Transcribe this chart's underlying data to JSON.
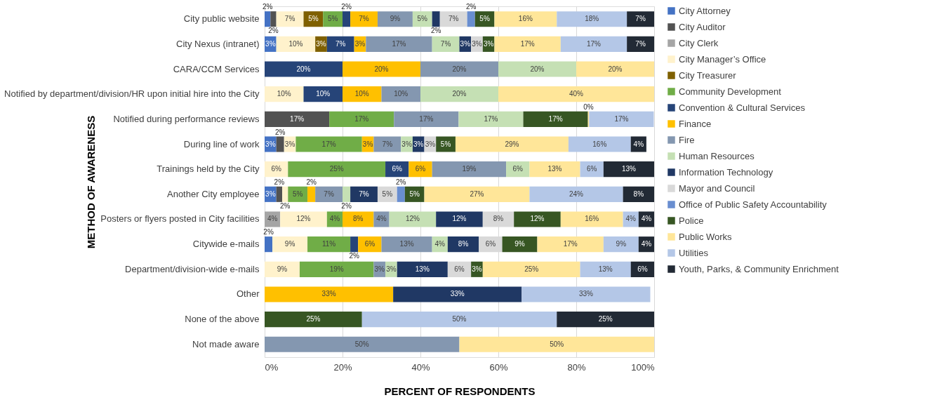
{
  "chart_data": {
    "type": "bar",
    "orientation": "horizontal",
    "stacked": true,
    "legend": "right",
    "grid": "x",
    "xlabel": "PERCENT OF RESPONDENTS",
    "ylabel": "METHOD OF AWARENESS",
    "categories": [
      "City public website",
      "City Nexus (intranet)",
      "CARA/CCM Services",
      "Notified by department/division/HR upon initial hire into the City",
      "Notified during performance reviews",
      "During line of work",
      "Trainings held by the City",
      "Another City employee",
      "Posters or flyers posted in City facilities",
      "Citywide e-mails",
      "Department/division-wide e-mails",
      "Other",
      "None of the above",
      "Not made aware"
    ],
    "xlim": [
      0,
      100
    ],
    "xticks": [
      {
        "value": 0,
        "label": "0%"
      },
      {
        "value": 20,
        "label": "20%"
      },
      {
        "value": 40,
        "label": "40%"
      },
      {
        "value": 60,
        "label": "60%"
      },
      {
        "value": 80,
        "label": "80%"
      },
      {
        "value": 100,
        "label": "100%"
      }
    ],
    "series": [
      {
        "name": "City Attorney",
        "color": "#4472c4",
        "values": [
          1.5,
          3,
          null,
          null,
          null,
          3,
          null,
          3,
          null,
          2,
          null,
          null,
          null,
          null
        ],
        "value_labels": [
          "2%",
          "3%",
          null,
          null,
          null,
          "3%",
          null,
          "3%",
          null,
          "2%",
          null,
          null,
          null,
          null
        ]
      },
      {
        "name": "City Auditor",
        "color": "#525252",
        "values": [
          1.5,
          null,
          null,
          null,
          16.6,
          2,
          null,
          1.5,
          null,
          null,
          null,
          null,
          null,
          null
        ],
        "value_labels": [
          "2%",
          null,
          null,
          null,
          "17%",
          "2%",
          null,
          "2%",
          null,
          null,
          null,
          null,
          null,
          null
        ]
      },
      {
        "name": "City Clerk",
        "color": "#a5a5a5",
        "values": [
          null,
          null,
          null,
          null,
          null,
          null,
          null,
          null,
          4,
          null,
          null,
          null,
          null,
          null
        ],
        "value_labels": [
          null,
          null,
          null,
          null,
          null,
          null,
          null,
          null,
          "4%",
          null,
          null,
          null,
          null,
          null
        ]
      },
      {
        "name": "City Manager’s Office",
        "color": "#fff2cc",
        "values": [
          7,
          10,
          null,
          10,
          null,
          3,
          6,
          1.5,
          12,
          9,
          9,
          null,
          null,
          null
        ],
        "value_labels": [
          "7%",
          "10%",
          null,
          "10%",
          null,
          "3%",
          "6%",
          "2%",
          "12%",
          "9%",
          "9%",
          null,
          null,
          null
        ]
      },
      {
        "name": "City Treasurer",
        "color": "#7f6000",
        "values": [
          5,
          3,
          null,
          null,
          null,
          null,
          null,
          null,
          null,
          null,
          null,
          null,
          null,
          null
        ],
        "value_labels": [
          "5%",
          "3%",
          null,
          null,
          null,
          null,
          null,
          null,
          null,
          null,
          null,
          null,
          null,
          null
        ]
      },
      {
        "name": "Community Development",
        "color": "#70ad47",
        "values": [
          5,
          null,
          null,
          null,
          16.6,
          17,
          25,
          5,
          4,
          11,
          19,
          null,
          null,
          null
        ],
        "value_labels": [
          "5%",
          null,
          null,
          null,
          "17%",
          "17%",
          "25%",
          "5%",
          "4%",
          "11%",
          "19%",
          null,
          null,
          null
        ]
      },
      {
        "name": "Convention & Cultural Services",
        "color": "#264478",
        "values": [
          2,
          7,
          20,
          10,
          null,
          null,
          6,
          null,
          null,
          2,
          null,
          null,
          null,
          null
        ],
        "value_labels": [
          "2%",
          "7%",
          "20%",
          "10%",
          null,
          null,
          "6%",
          null,
          null,
          "2%",
          null,
          null,
          null,
          null
        ]
      },
      {
        "name": "Finance",
        "color": "#ffc000",
        "values": [
          7,
          3,
          20,
          10,
          null,
          3,
          6,
          2,
          8,
          6,
          null,
          33,
          null,
          null
        ],
        "value_labels": [
          "7%",
          "3%",
          "20%",
          "10%",
          null,
          "3%",
          "6%",
          "2%",
          "8%",
          "6%",
          null,
          "33%",
          null,
          null
        ]
      },
      {
        "name": "Fire",
        "color": "#8497b0",
        "values": [
          9,
          17,
          20,
          10,
          16.6,
          7,
          19,
          7,
          4,
          13,
          3,
          null,
          null,
          50
        ],
        "value_labels": [
          "9%",
          "17%",
          "20%",
          "10%",
          "17%",
          "7%",
          "19%",
          "7%",
          "4%",
          "13%",
          "3%",
          null,
          null,
          "50%"
        ]
      },
      {
        "name": "Human Resources",
        "color": "#c5e0b4",
        "values": [
          5,
          7,
          20,
          20,
          16.6,
          3,
          6,
          2,
          12,
          4,
          3,
          null,
          null,
          null
        ],
        "value_labels": [
          "5%",
          "7%",
          "20%",
          "20%",
          "17%",
          "3%",
          "6%",
          "2%",
          "12%",
          "4%",
          "3%",
          null,
          null,
          null
        ]
      },
      {
        "name": "Information Technology",
        "color": "#203864",
        "values": [
          2,
          3,
          null,
          null,
          null,
          3,
          null,
          7,
          12,
          8,
          13,
          33,
          null,
          null
        ],
        "value_labels": [
          "2%",
          "3%",
          null,
          null,
          null,
          "3%",
          null,
          "7%",
          "12%",
          "8%",
          "13%",
          "33%",
          null,
          null
        ]
      },
      {
        "name": "Mayor and Council",
        "color": "#d9d9d9",
        "values": [
          7,
          3,
          null,
          null,
          null,
          3,
          null,
          5,
          8,
          6,
          6,
          null,
          null,
          null
        ],
        "value_labels": [
          "7%",
          "3%",
          null,
          null,
          null,
          "3%",
          null,
          "5%",
          "8%",
          "6%",
          "6%",
          null,
          null,
          null
        ]
      },
      {
        "name": "Office of Public Safety Accountability",
        "color": "#698ed0",
        "values": [
          2,
          null,
          null,
          null,
          null,
          null,
          null,
          2,
          null,
          null,
          null,
          null,
          null,
          null
        ],
        "value_labels": [
          "2%",
          null,
          null,
          null,
          null,
          null,
          null,
          "2%",
          null,
          null,
          null,
          null,
          null,
          null
        ]
      },
      {
        "name": "Police",
        "color": "#375623",
        "values": [
          5,
          3,
          null,
          null,
          16.6,
          5,
          null,
          5,
          12,
          9,
          3,
          null,
          25,
          null
        ],
        "value_labels": [
          "5%",
          "3%",
          null,
          null,
          "17%",
          "5%",
          null,
          "5%",
          "12%",
          "9%",
          "3%",
          null,
          "25%",
          null
        ]
      },
      {
        "name": "Public Works",
        "color": "#ffe699",
        "values": [
          16,
          17,
          20,
          40,
          0.3,
          29,
          13,
          27,
          16,
          17,
          25,
          null,
          null,
          50
        ],
        "value_labels": [
          "16%",
          "17%",
          "20%",
          "40%",
          "0%",
          "29%",
          "13%",
          "27%",
          "16%",
          "17%",
          "25%",
          null,
          null,
          "50%"
        ]
      },
      {
        "name": "Utilities",
        "color": "#b4c7e7",
        "values": [
          18,
          17,
          null,
          null,
          16.6,
          16,
          6,
          24,
          4,
          9,
          13,
          33,
          50,
          null
        ],
        "value_labels": [
          "18%",
          "17%",
          null,
          null,
          "17%",
          "16%",
          "6%",
          "24%",
          "4%",
          "9%",
          "13%",
          "33%",
          "50%",
          null
        ]
      },
      {
        "name": "Youth, Parks, & Community Enrichment",
        "color": "#222a35",
        "values": [
          7,
          7,
          null,
          null,
          null,
          4,
          13,
          8,
          4,
          4,
          6,
          null,
          25,
          null
        ],
        "value_labels": [
          "7%",
          "7%",
          null,
          null,
          null,
          "4%",
          "13%",
          "8%",
          "4%",
          "4%",
          "6%",
          null,
          "25%",
          null
        ]
      }
    ]
  }
}
